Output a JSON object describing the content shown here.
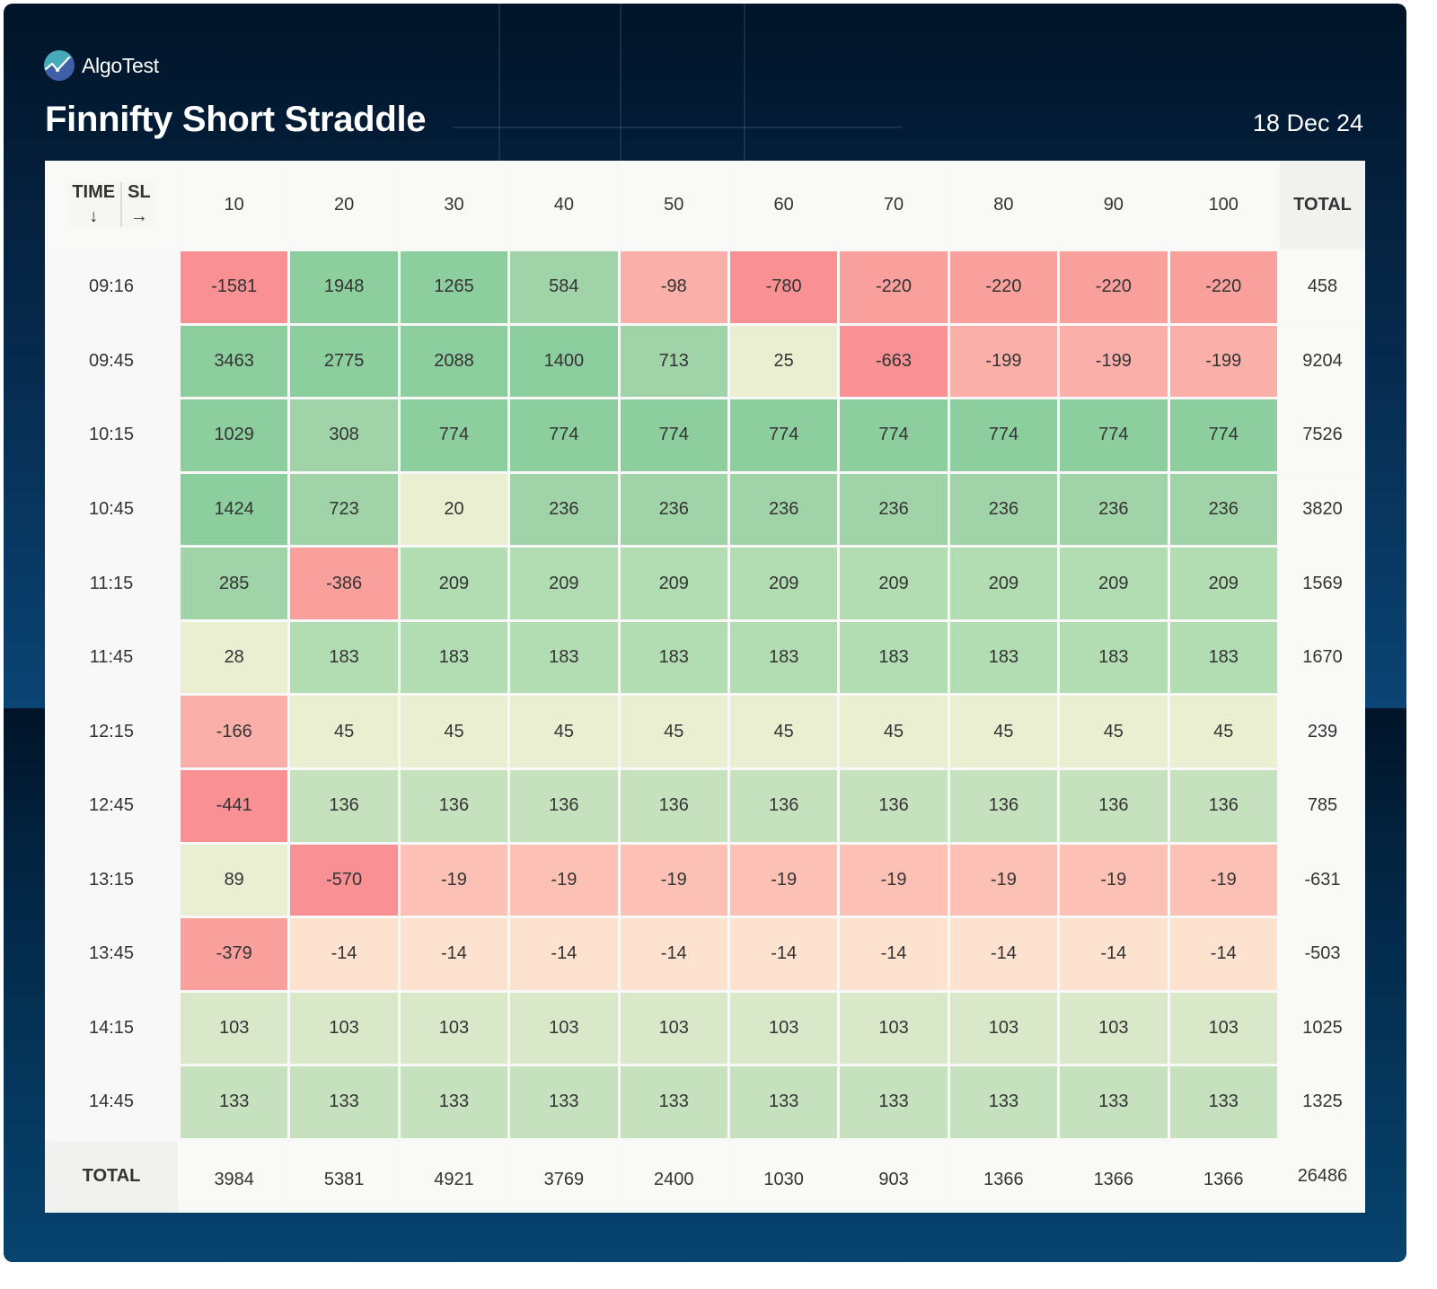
{
  "brand": {
    "name": "AlgoTest",
    "logo_icon": "algotest-chart-logo-icon"
  },
  "title": "Finnifty Short Straddle",
  "date": "18 Dec 24",
  "chart_data": {
    "type": "heatmap",
    "title": "Finnifty Short Straddle",
    "row_axis_label": "TIME",
    "row_axis_arrow": "↓",
    "col_axis_label": "SL",
    "col_axis_arrow": "→",
    "total_label": "TOTAL",
    "columns": [
      "10",
      "20",
      "30",
      "40",
      "50",
      "60",
      "70",
      "80",
      "90",
      "100"
    ],
    "rows": [
      {
        "time": "09:16",
        "values": [
          -1581,
          1948,
          1265,
          584,
          -98,
          -780,
          -220,
          -220,
          -220,
          -220
        ],
        "total": 458
      },
      {
        "time": "09:45",
        "values": [
          3463,
          2775,
          2088,
          1400,
          713,
          25,
          -663,
          -199,
          -199,
          -199
        ],
        "total": 9204
      },
      {
        "time": "10:15",
        "values": [
          1029,
          308,
          774,
          774,
          774,
          774,
          774,
          774,
          774,
          774
        ],
        "total": 7526
      },
      {
        "time": "10:45",
        "values": [
          1424,
          723,
          20,
          236,
          236,
          236,
          236,
          236,
          236,
          236
        ],
        "total": 3820
      },
      {
        "time": "11:15",
        "values": [
          285,
          -386,
          209,
          209,
          209,
          209,
          209,
          209,
          209,
          209
        ],
        "total": 1569
      },
      {
        "time": "11:45",
        "values": [
          28,
          183,
          183,
          183,
          183,
          183,
          183,
          183,
          183,
          183
        ],
        "total": 1670
      },
      {
        "time": "12:15",
        "values": [
          -166,
          45,
          45,
          45,
          45,
          45,
          45,
          45,
          45,
          45
        ],
        "total": 239
      },
      {
        "time": "12:45",
        "values": [
          -441,
          136,
          136,
          136,
          136,
          136,
          136,
          136,
          136,
          136
        ],
        "total": 785
      },
      {
        "time": "13:15",
        "values": [
          89,
          -570,
          -19,
          -19,
          -19,
          -19,
          -19,
          -19,
          -19,
          -19
        ],
        "total": -631
      },
      {
        "time": "13:45",
        "values": [
          -379,
          -14,
          -14,
          -14,
          -14,
          -14,
          -14,
          -14,
          -14,
          -14
        ],
        "total": -503
      },
      {
        "time": "14:15",
        "values": [
          103,
          103,
          103,
          103,
          103,
          103,
          103,
          103,
          103,
          103
        ],
        "total": 1025
      },
      {
        "time": "14:45",
        "values": [
          133,
          133,
          133,
          133,
          133,
          133,
          133,
          133,
          133,
          133
        ],
        "total": 1325
      }
    ],
    "column_totals": [
      3984,
      5381,
      4921,
      3769,
      2400,
      1030,
      903,
      1366,
      1366,
      1366
    ],
    "grand_total": 26486,
    "color_scale": [
      {
        "min": 750,
        "color": "#8dce9e"
      },
      {
        "min": 230,
        "color": "#a0d4a8"
      },
      {
        "min": 150,
        "color": "#b2dcb2"
      },
      {
        "min": 120,
        "color": "#c5e1bd"
      },
      {
        "min": 95,
        "color": "#d9e8c8"
      },
      {
        "min": 0,
        "color": "#eaefd2"
      },
      {
        "min": -15,
        "color": "#fde2d0"
      },
      {
        "min": -50,
        "color": "#fcc0b5"
      },
      {
        "min": -210,
        "color": "#fab0a8"
      },
      {
        "min": -400,
        "color": "#f9a09c"
      },
      {
        "min": -100000,
        "color": "#f99093"
      }
    ]
  }
}
